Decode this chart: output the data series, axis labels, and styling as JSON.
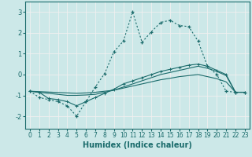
{
  "xlabel": "Humidex (Indice chaleur)",
  "bg_color": "#cce8e8",
  "grid_color": "#f0f0f0",
  "line_color": "#1a6b6b",
  "xlim": [
    -0.5,
    23.5
  ],
  "ylim": [
    -2.6,
    3.5
  ],
  "xticks": [
    0,
    1,
    2,
    3,
    4,
    5,
    6,
    7,
    8,
    9,
    10,
    11,
    12,
    13,
    14,
    15,
    16,
    17,
    18,
    19,
    20,
    21,
    22,
    23
  ],
  "yticks": [
    -2,
    -1,
    0,
    1,
    2,
    3
  ],
  "line1_x": [
    0,
    1,
    2,
    3,
    4,
    5,
    6,
    7,
    8,
    9,
    10,
    11,
    12,
    13,
    14,
    15,
    16,
    17,
    18,
    19,
    20,
    21,
    22,
    23
  ],
  "line1_y": [
    -0.8,
    -1.1,
    -1.2,
    -1.3,
    -1.5,
    -2.0,
    -1.3,
    -0.6,
    0.05,
    1.1,
    1.6,
    3.0,
    1.55,
    2.05,
    2.5,
    2.6,
    2.35,
    2.3,
    1.6,
    0.4,
    0.0,
    -0.8,
    -0.85,
    -0.85
  ],
  "line2_x": [
    0,
    1,
    2,
    3,
    4,
    5,
    6,
    7,
    8,
    9,
    10,
    11,
    12,
    13,
    14,
    15,
    16,
    17,
    18,
    19,
    20,
    21,
    22,
    23
  ],
  "line2_y": [
    -0.8,
    -0.85,
    -1.15,
    -1.2,
    -1.3,
    -1.5,
    -1.3,
    -1.1,
    -0.9,
    -0.7,
    -0.45,
    -0.3,
    -0.15,
    0.0,
    0.15,
    0.25,
    0.35,
    0.45,
    0.5,
    0.4,
    0.2,
    0.0,
    -0.85,
    -0.85
  ],
  "line3_x": [
    0,
    1,
    2,
    3,
    4,
    5,
    6,
    7,
    8,
    9,
    10,
    11,
    12,
    13,
    14,
    15,
    16,
    17,
    18,
    19,
    20,
    21,
    22,
    23
  ],
  "line3_y": [
    -0.8,
    -0.85,
    -0.9,
    -0.95,
    -1.0,
    -1.0,
    -0.98,
    -0.95,
    -0.85,
    -0.75,
    -0.6,
    -0.45,
    -0.3,
    -0.15,
    0.0,
    0.1,
    0.2,
    0.3,
    0.4,
    0.3,
    0.15,
    -0.05,
    -0.85,
    -0.85
  ],
  "line4_x": [
    0,
    1,
    2,
    3,
    4,
    5,
    6,
    7,
    8,
    9,
    10,
    11,
    12,
    13,
    14,
    15,
    16,
    17,
    18,
    19,
    20,
    21,
    22,
    23
  ],
  "line4_y": [
    -0.8,
    -0.82,
    -0.84,
    -0.86,
    -0.88,
    -0.9,
    -0.88,
    -0.85,
    -0.8,
    -0.75,
    -0.65,
    -0.55,
    -0.45,
    -0.35,
    -0.25,
    -0.18,
    -0.1,
    -0.05,
    0.0,
    -0.1,
    -0.2,
    -0.35,
    -0.85,
    -0.85
  ]
}
